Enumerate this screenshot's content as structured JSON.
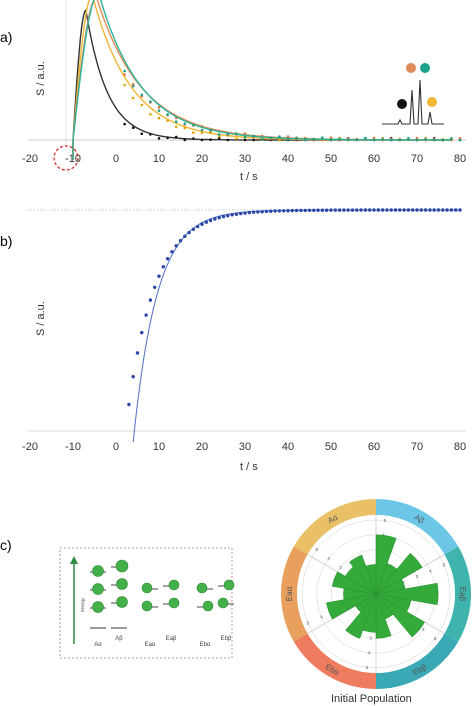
{
  "panels": {
    "a": "a)",
    "b": "b)",
    "c": "c)"
  },
  "chart_data": [
    {
      "type": "line",
      "panel": "a",
      "xlabel": "t / s",
      "ylabel": "S / a.u.",
      "xlim": [
        -20,
        80
      ],
      "x_ticks": [
        "-20",
        "-10",
        "0",
        "10",
        "20",
        "30",
        "40",
        "50",
        "60",
        "70",
        "80"
      ],
      "series": [
        {
          "color": "#333333",
          "t0": -10,
          "tpeak": -7,
          "tau": 5.0,
          "amp": 0.94,
          "marker_color": "#111111"
        },
        {
          "color": "#f2b632",
          "t0": -10,
          "tpeak": -5.5,
          "tau": 9.0,
          "amp": 1.05,
          "marker_color": "#e0a300"
        },
        {
          "color": "#e08a58",
          "t0": -10,
          "tpeak": -4.5,
          "tau": 10.5,
          "amp": 1.03,
          "marker_color": "#d9743e"
        },
        {
          "color": "#2cb39a",
          "t0": -10,
          "tpeak": -4.0,
          "tau": 9.8,
          "amp": 1.06,
          "marker_color": "#1f9e86"
        }
      ],
      "inset_dots": [
        "#111111",
        "#e08a58",
        "#1aa38a",
        "#f2b632"
      ]
    },
    {
      "type": "scatter",
      "panel": "b",
      "xlabel": "t / s",
      "ylabel": "S / a.u.",
      "xlim": [
        -20,
        80
      ],
      "x_ticks": [
        "-20",
        "-10",
        "0",
        "10",
        "20",
        "30",
        "40",
        "50",
        "60",
        "70",
        "80"
      ],
      "series": [
        {
          "points_from_t": 3,
          "points_to_t": 80,
          "step": 1,
          "plateau": 1.0,
          "start": 0.12,
          "tau": 6.5,
          "marker_color": "#2946a8",
          "fit": {
            "from_t": 4,
            "to_t": 80,
            "start": -0.05,
            "tau": 5.5,
            "color": "#5d78c6"
          }
        }
      ]
    }
  ],
  "diagram": {
    "energy_axis_label": "Energy",
    "levels": [
      {
        "label": "Aα"
      },
      {
        "label": "Aβ"
      },
      {
        "label": "Eaα"
      },
      {
        "label": "Eaβ"
      },
      {
        "label": "Ebα"
      },
      {
        "label": "Ebβ"
      }
    ]
  },
  "polar": {
    "title": "Initial Population",
    "sectors": [
      {
        "label": "Aα",
        "color": "#e9c065"
      },
      {
        "label": "Aβ",
        "color": "#6cc7e6"
      },
      {
        "label": "Eaα",
        "color": "#e9a05f"
      },
      {
        "label": "Eaβ",
        "color": "#3fb4ad"
      },
      {
        "label": "Ebα",
        "color": "#ef7c5f"
      },
      {
        "label": "Ebβ",
        "color": "#3aa9b5"
      }
    ],
    "ring_numbers": [
      "1",
      "2",
      "3",
      "4",
      "5"
    ],
    "bar_color": "#33aa3a",
    "values": [
      4.0,
      2.2,
      3.6,
      2.0,
      4.2,
      2.4,
      3.8,
      1.8,
      3.0,
      2.6,
      3.2,
      1.6,
      3.4,
      2.2,
      3.0,
      2.4,
      2.8,
      2.0
    ]
  }
}
